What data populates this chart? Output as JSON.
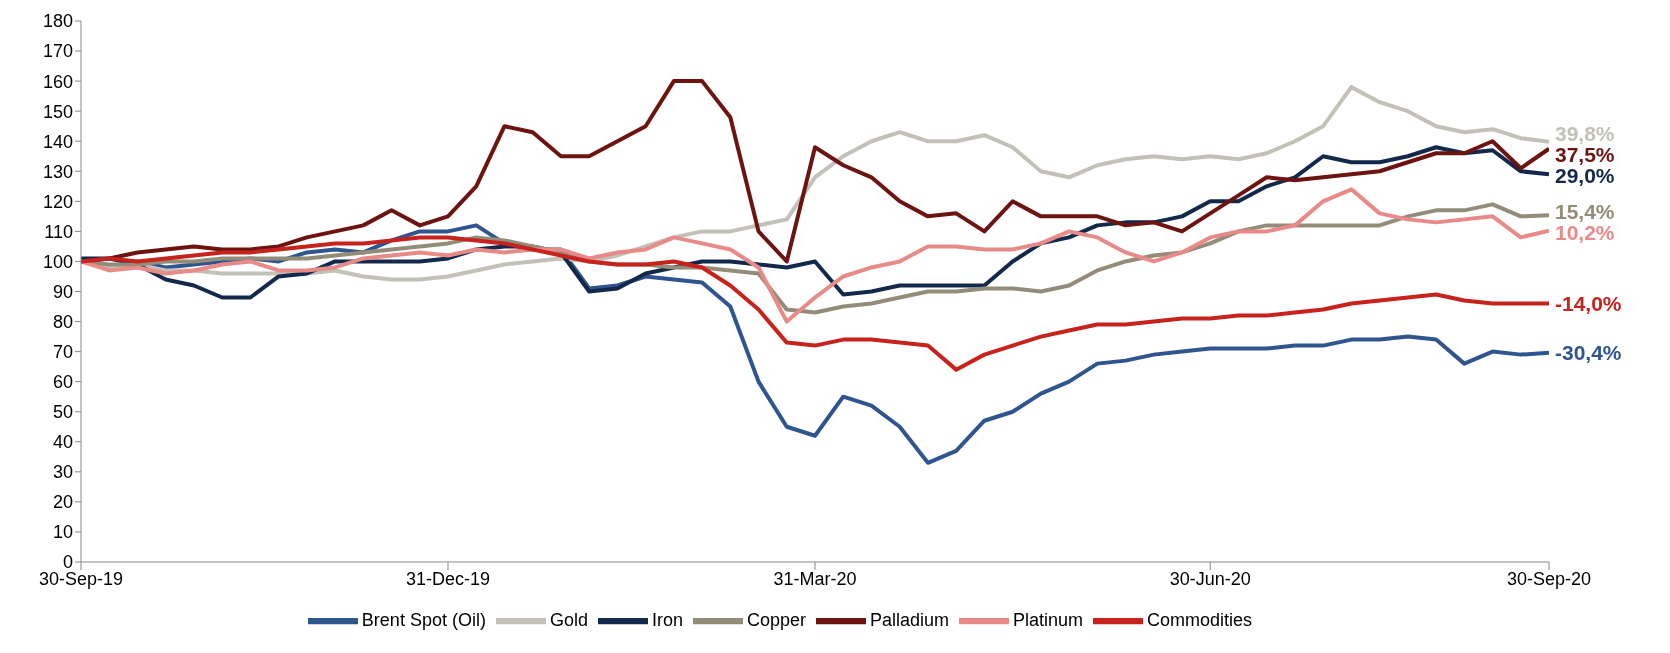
{
  "chart_data": {
    "type": "line",
    "categories": [
      "30-Sep-19",
      null,
      null,
      null,
      null,
      null,
      null,
      null,
      null,
      null,
      null,
      null,
      null,
      "31-Dec-19",
      null,
      null,
      null,
      null,
      null,
      null,
      null,
      null,
      null,
      null,
      null,
      null,
      "31-Mar-20",
      null,
      null,
      null,
      null,
      null,
      null,
      null,
      null,
      null,
      null,
      null,
      null,
      null,
      "30-Jun-20",
      null,
      null,
      null,
      null,
      null,
      null,
      null,
      null,
      null,
      null,
      null,
      "30-Sep-20"
    ],
    "ylim": [
      0,
      180
    ],
    "yticks": [
      0,
      10,
      20,
      30,
      40,
      50,
      60,
      70,
      80,
      90,
      100,
      110,
      120,
      130,
      140,
      150,
      160,
      170,
      180
    ],
    "grid": false,
    "legend": "bottom",
    "marker": "none",
    "line_style": "solid",
    "annotations": [
      {
        "text": "-30,4%",
        "x": "30-Sep-20",
        "y": 69.6
      },
      {
        "text": "39,8%",
        "x": "30-Sep-20",
        "y": 139.8
      },
      {
        "text": "29,0%",
        "x": "30-Sep-20",
        "y": 129
      },
      {
        "text": "15,4%",
        "x": "30-Sep-20",
        "y": 115.4
      },
      {
        "text": "37,5%",
        "x": "30-Sep-20",
        "y": 137.5
      },
      {
        "text": "10,2%",
        "x": "30-Sep-20",
        "y": 110.2
      },
      {
        "text": "-14,0%",
        "x": "30-Sep-20",
        "y": 86
      }
    ],
    "series": [
      {
        "name": "Brent Spot (Oil)",
        "color": "#2e5590",
        "values": [
          100,
          98,
          100,
          98,
          99,
          100,
          101,
          100,
          103,
          104,
          103,
          107,
          110,
          110,
          112,
          106,
          104,
          104,
          91,
          92,
          95,
          94,
          93,
          85,
          60,
          45,
          42,
          55,
          52,
          45,
          33,
          37,
          47,
          50,
          56,
          60,
          66,
          67,
          69,
          70,
          71,
          71,
          71,
          72,
          72,
          74,
          74,
          75,
          74,
          66,
          70,
          69,
          69.6
        ]
      },
      {
        "name": "Gold",
        "color": "#c3c0b8",
        "values": [
          100,
          98,
          99,
          97,
          97,
          96,
          96,
          96,
          96,
          97,
          95,
          94,
          94,
          95,
          97,
          99,
          100,
          101,
          100,
          102,
          105,
          108,
          110,
          110,
          112,
          114,
          128,
          135,
          140,
          143,
          140,
          140,
          142,
          138,
          130,
          128,
          132,
          134,
          135,
          134,
          135,
          134,
          136,
          140,
          145,
          158,
          153,
          150,
          145,
          143,
          144,
          141,
          139.8
        ]
      },
      {
        "name": "Iron",
        "color": "#13294b",
        "values": [
          101,
          101,
          99,
          94,
          92,
          88,
          88,
          95,
          96,
          100,
          100,
          100,
          100,
          101,
          104,
          105,
          105,
          103,
          90,
          91,
          96,
          98,
          100,
          100,
          99,
          98,
          100,
          89,
          90,
          92,
          92,
          92,
          92,
          100,
          106,
          108,
          112,
          113,
          113,
          115,
          120,
          120,
          125,
          128,
          135,
          133,
          133,
          135,
          138,
          136,
          137,
          130,
          129
        ]
      },
      {
        "name": "Copper",
        "color": "#938c78",
        "values": [
          100,
          99,
          99,
          100,
          100,
          101,
          101,
          101,
          101,
          102,
          103,
          104,
          105,
          106,
          108,
          107,
          105,
          103,
          100,
          99,
          99,
          98,
          98,
          97,
          96,
          84,
          83,
          85,
          86,
          88,
          90,
          90,
          91,
          91,
          90,
          92,
          97,
          100,
          102,
          103,
          106,
          110,
          112,
          112,
          112,
          112,
          112,
          115,
          117,
          117,
          119,
          115,
          115.4
        ]
      },
      {
        "name": "Palladium",
        "color": "#6e1410",
        "values": [
          100,
          101,
          103,
          104,
          105,
          104,
          104,
          105,
          108,
          110,
          112,
          117,
          112,
          115,
          125,
          145,
          143,
          135,
          135,
          140,
          145,
          160,
          160,
          148,
          110,
          100,
          138,
          132,
          128,
          120,
          115,
          116,
          110,
          120,
          115,
          115,
          115,
          112,
          113,
          110,
          116,
          122,
          128,
          127,
          128,
          129,
          130,
          133,
          136,
          136,
          140,
          131,
          137.5
        ]
      },
      {
        "name": "Platinum",
        "color": "#e88a88",
        "values": [
          100,
          97,
          98,
          96,
          97,
          99,
          100,
          97,
          97,
          98,
          101,
          102,
          103,
          102,
          104,
          103,
          104,
          104,
          101,
          103,
          104,
          108,
          106,
          104,
          98,
          80,
          88,
          95,
          98,
          100,
          105,
          105,
          104,
          104,
          106,
          110,
          108,
          103,
          100,
          103,
          108,
          110,
          110,
          112,
          120,
          124,
          116,
          114,
          113,
          114,
          115,
          108,
          110.2
        ]
      },
      {
        "name": "Commodities",
        "color": "#c8221c",
        "values": [
          100,
          101,
          100,
          101,
          102,
          103,
          103,
          104,
          105,
          106,
          106,
          107,
          108,
          108,
          107,
          106,
          104,
          102,
          100,
          99,
          99,
          100,
          98,
          92,
          84,
          73,
          72,
          74,
          74,
          73,
          72,
          64,
          69,
          72,
          75,
          77,
          79,
          79,
          80,
          81,
          81,
          82,
          82,
          83,
          84,
          86,
          87,
          88,
          89,
          87,
          86,
          86,
          86
        ]
      }
    ]
  }
}
